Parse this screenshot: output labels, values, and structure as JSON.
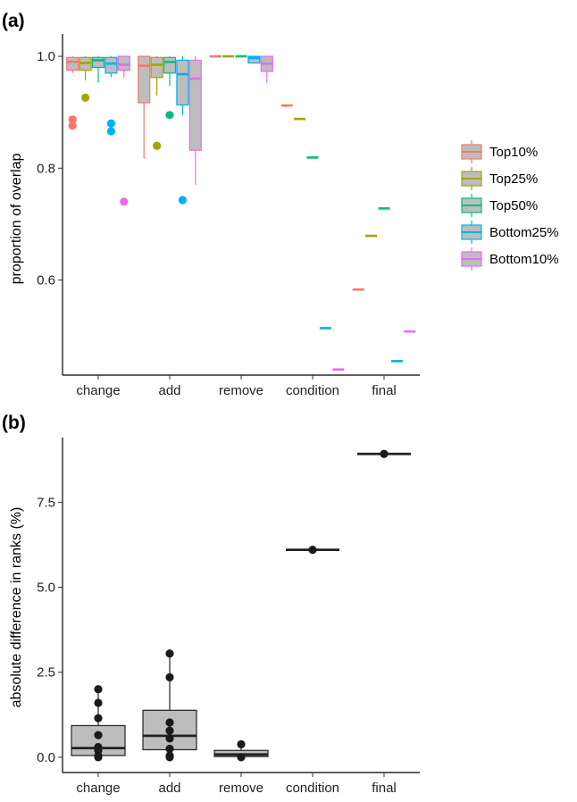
{
  "chart_data": [
    {
      "panel_label": "(a)",
      "type": "boxplot",
      "ylabel": "proportion of overlap",
      "xlabel": "",
      "categories": [
        "change",
        "add",
        "remove",
        "condition",
        "final"
      ],
      "ylim": [
        0.43,
        1.04
      ],
      "yticks": [
        0.6,
        0.8,
        1.0
      ],
      "ytick_labels": [
        "0.6",
        "0.8",
        "1.0"
      ],
      "grid": false,
      "legend_position": "right",
      "series": [
        {
          "name": "Top10%",
          "color": "#F8766D",
          "boxes": [
            {
              "category": "change",
              "min": 0.97,
              "q1": 0.975,
              "median": 0.99,
              "q3": 0.998,
              "max": 1.0,
              "outliers": [
                0.887,
                0.876
              ]
            },
            {
              "category": "add",
              "min": 0.817,
              "q1": 0.917,
              "median": 0.983,
              "q3": 1.0,
              "max": 1.0,
              "outliers": []
            },
            {
              "category": "remove",
              "min": 1.0,
              "q1": 1.0,
              "median": 1.0,
              "q3": 1.0,
              "max": 1.0,
              "outliers": []
            },
            {
              "category": "condition",
              "min": 0.912,
              "q1": 0.912,
              "median": 0.912,
              "q3": 0.912,
              "max": 0.912,
              "outliers": []
            },
            {
              "category": "final",
              "min": 0.583,
              "q1": 0.583,
              "median": 0.583,
              "q3": 0.583,
              "max": 0.583,
              "outliers": []
            }
          ]
        },
        {
          "name": "Top25%",
          "color": "#A3A500",
          "boxes": [
            {
              "category": "change",
              "min": 0.957,
              "q1": 0.975,
              "median": 0.988,
              "q3": 0.998,
              "max": 1.0,
              "outliers": [
                0.926
              ]
            },
            {
              "category": "add",
              "min": 0.93,
              "q1": 0.962,
              "median": 0.985,
              "q3": 0.998,
              "max": 1.0,
              "outliers": [
                0.84
              ]
            },
            {
              "category": "remove",
              "min": 0.998,
              "q1": 1.0,
              "median": 1.0,
              "q3": 1.0,
              "max": 1.0,
              "outliers": []
            },
            {
              "category": "condition",
              "min": 0.888,
              "q1": 0.888,
              "median": 0.888,
              "q3": 0.888,
              "max": 0.888,
              "outliers": []
            },
            {
              "category": "final",
              "min": 0.679,
              "q1": 0.679,
              "median": 0.679,
              "q3": 0.679,
              "max": 0.679,
              "outliers": []
            }
          ]
        },
        {
          "name": "Top50%",
          "color": "#00BF7D",
          "boxes": [
            {
              "category": "change",
              "min": 0.953,
              "q1": 0.98,
              "median": 0.993,
              "q3": 0.998,
              "max": 1.0,
              "outliers": []
            },
            {
              "category": "add",
              "min": 0.947,
              "q1": 0.97,
              "median": 0.99,
              "q3": 0.998,
              "max": 1.0,
              "outliers": [
                0.895
              ]
            },
            {
              "category": "remove",
              "min": 0.998,
              "q1": 1.0,
              "median": 1.0,
              "q3": 1.0,
              "max": 1.0,
              "outliers": []
            },
            {
              "category": "condition",
              "min": 0.819,
              "q1": 0.819,
              "median": 0.819,
              "q3": 0.819,
              "max": 0.819,
              "outliers": []
            },
            {
              "category": "final",
              "min": 0.728,
              "q1": 0.728,
              "median": 0.728,
              "q3": 0.728,
              "max": 0.728,
              "outliers": []
            }
          ]
        },
        {
          "name": "Bottom25%",
          "color": "#00B0F6",
          "boxes": [
            {
              "category": "change",
              "min": 0.963,
              "q1": 0.97,
              "median": 0.987,
              "q3": 0.998,
              "max": 1.0,
              "outliers": [
                0.88,
                0.866
              ]
            },
            {
              "category": "add",
              "min": 0.895,
              "q1": 0.913,
              "median": 0.968,
              "q3": 0.993,
              "max": 1.0,
              "outliers": [
                0.743
              ]
            },
            {
              "category": "remove",
              "min": 0.987,
              "q1": 0.988,
              "median": 0.997,
              "q3": 1.0,
              "max": 1.0,
              "outliers": []
            },
            {
              "category": "condition",
              "min": 0.514,
              "q1": 0.514,
              "median": 0.514,
              "q3": 0.514,
              "max": 0.514,
              "outliers": []
            },
            {
              "category": "final",
              "min": 0.455,
              "q1": 0.455,
              "median": 0.455,
              "q3": 0.455,
              "max": 0.455,
              "outliers": []
            }
          ]
        },
        {
          "name": "Bottom10%",
          "color": "#E76BF3",
          "boxes": [
            {
              "category": "change",
              "min": 0.962,
              "q1": 0.975,
              "median": 0.985,
              "q3": 1.0,
              "max": 1.0,
              "outliers": [
                0.74
              ]
            },
            {
              "category": "add",
              "min": 0.77,
              "q1": 0.832,
              "median": 0.96,
              "q3": 0.993,
              "max": 1.0,
              "outliers": []
            },
            {
              "category": "remove",
              "min": 0.952,
              "q1": 0.973,
              "median": 0.987,
              "q3": 1.0,
              "max": 1.0,
              "outliers": []
            },
            {
              "category": "condition",
              "min": 0.44,
              "q1": 0.44,
              "median": 0.44,
              "q3": 0.44,
              "max": 0.44,
              "outliers": []
            },
            {
              "category": "final",
              "min": 0.508,
              "q1": 0.508,
              "median": 0.508,
              "q3": 0.508,
              "max": 0.508,
              "outliers": []
            }
          ]
        }
      ]
    },
    {
      "panel_label": "(b)",
      "type": "boxplot",
      "ylabel": "absolute difference in ranks (%)",
      "xlabel": "",
      "categories": [
        "change",
        "add",
        "remove",
        "condition",
        "final"
      ],
      "ylim": [
        -0.45,
        9.4
      ],
      "yticks": [
        0,
        2.5,
        5,
        7.5
      ],
      "ytick_labels": [
        "0.0",
        "2.5",
        "5.0",
        "7.5"
      ],
      "grid": false,
      "color": "#222222",
      "boxes": [
        {
          "category": "change",
          "min": 0.0,
          "q1": 0.05,
          "median": 0.27,
          "q3": 0.93,
          "max": 2.0,
          "points": [
            2.0,
            1.6,
            1.15,
            0.65,
            0.3,
            0.2,
            0.05,
            0.0
          ]
        },
        {
          "category": "add",
          "min": 0.0,
          "q1": 0.22,
          "median": 0.63,
          "q3": 1.38,
          "max": 3.05,
          "points": [
            3.05,
            2.35,
            1.02,
            0.78,
            0.55,
            0.25,
            0.05,
            0.0
          ]
        },
        {
          "category": "remove",
          "min": 0.0,
          "q1": 0.02,
          "median": 0.08,
          "q3": 0.2,
          "max": 0.38,
          "points": [
            0.38,
            0.0
          ]
        },
        {
          "category": "condition",
          "min": 6.1,
          "q1": 6.1,
          "median": 6.1,
          "q3": 6.1,
          "max": 6.1,
          "points": [
            6.1
          ]
        },
        {
          "category": "final",
          "min": 8.92,
          "q1": 8.92,
          "median": 8.92,
          "q3": 8.92,
          "max": 8.92,
          "points": [
            8.92
          ]
        }
      ]
    }
  ]
}
